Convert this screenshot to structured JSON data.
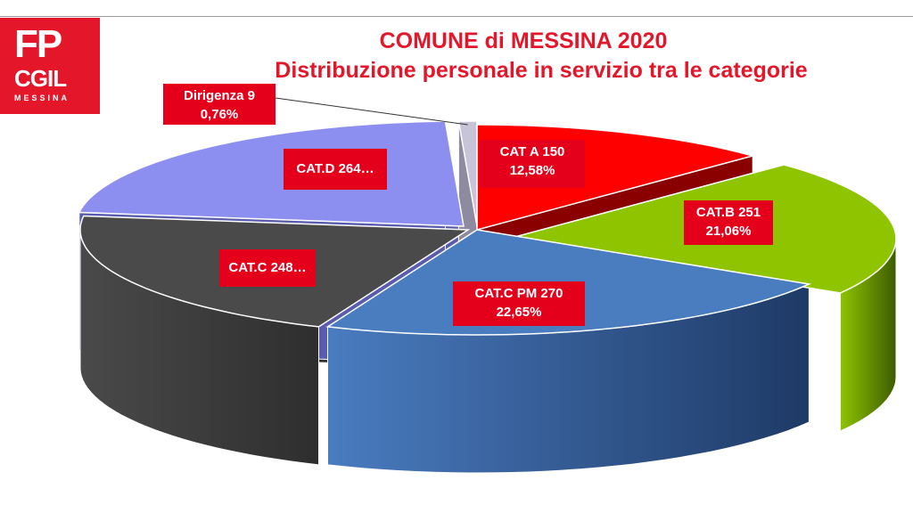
{
  "logo": {
    "line1": "FP",
    "line2": "CGIL",
    "line3": "MESSINA"
  },
  "chart_data": {
    "type": "pie",
    "title": "COMUNE di MESSINA 2020",
    "subtitle": "Distribuzione personale in servizio tra le categorie",
    "slices": [
      {
        "category": "CAT A",
        "value": 150,
        "percent": 12.58,
        "label_line1": "CAT A 150",
        "label_line2": "12,58%",
        "color": "#ff0000",
        "side_color": "#8a0000"
      },
      {
        "category": "CAT.B",
        "value": 251,
        "percent": 21.06,
        "label_line1": "CAT.B 251",
        "label_line2": "21,06%",
        "color": "#8fc400",
        "side_color": "#3d5c00"
      },
      {
        "category": "CAT.C PM",
        "value": 270,
        "percent": 22.65,
        "label_line1": "CAT.C PM 270",
        "label_line2": "22,65%",
        "color": "#4a7cc0",
        "side_color": "#1e3a66"
      },
      {
        "category": "CAT.C",
        "value": 248,
        "label_line1": "CAT.C  248…",
        "label_line2": "",
        "color": "#4a4a4a",
        "side_color": "#2e2e2e"
      },
      {
        "category": "CAT.D",
        "value": 264,
        "label_line1": "CAT.D 264…",
        "label_line2": "",
        "color": "#8c8ff0",
        "side_color": "#5a5cb0"
      },
      {
        "category": "Dirigenza",
        "value": 9,
        "percent": 0.76,
        "label_line1": "Dirigenza 9",
        "label_line2": "0,76%",
        "color": "#c8c4d8",
        "side_color": "#8e8aa0"
      }
    ]
  }
}
